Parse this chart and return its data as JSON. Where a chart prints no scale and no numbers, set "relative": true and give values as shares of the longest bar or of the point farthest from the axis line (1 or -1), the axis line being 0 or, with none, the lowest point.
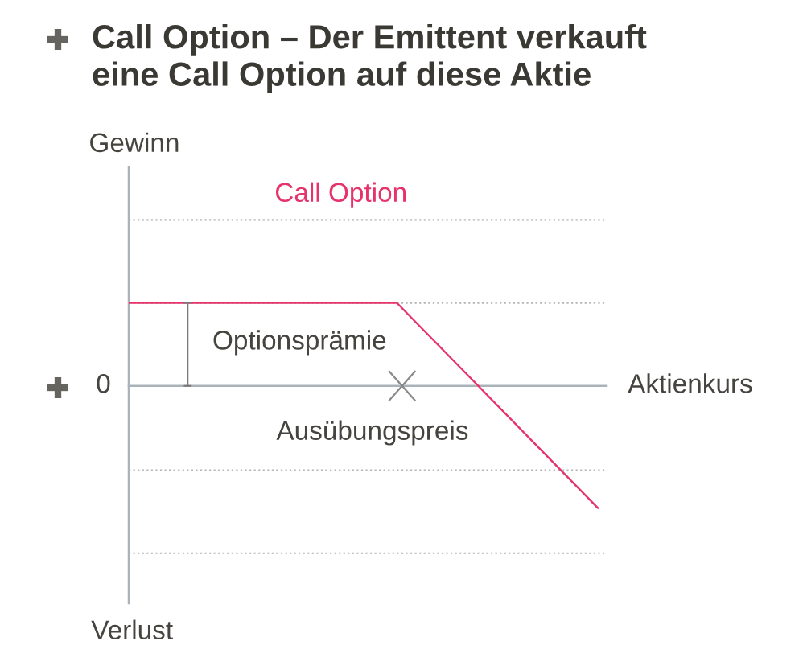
{
  "chart_data": {
    "type": "line",
    "title": "Call Option – Der Emittent verkauft eine Call Option auf diese Aktie",
    "xlabel": "Aktienkurs",
    "annotations": [
      "Gewinn",
      "Verlust",
      "Optionsprämie",
      "Ausübungspreis",
      "0"
    ],
    "relative": true,
    "categories": [
      null,
      null,
      null,
      null,
      null,
      null,
      null,
      null
    ],
    "series": [
      {
        "name": "Call Option",
        "color": "#e6336b",
        "values": [
          0.68,
          0.68,
          0.68,
          0.68,
          0.68,
          0.12,
          -0.44,
          -1
        ]
      }
    ],
    "ref_lines": [
      {
        "axis": "y",
        "value": 1.36,
        "color": "#b5b5b5",
        "line_style": "dotted"
      },
      {
        "axis": "y",
        "value": 0.68,
        "color": "#b5b5b5",
        "line_style": "dotted"
      },
      {
        "axis": "y",
        "value": -0.69,
        "color": "#b5b5b5",
        "line_style": "dotted"
      },
      {
        "axis": "y",
        "value": -1.37,
        "color": "#b5b5b5",
        "line_style": "dotted"
      }
    ]
  }
}
